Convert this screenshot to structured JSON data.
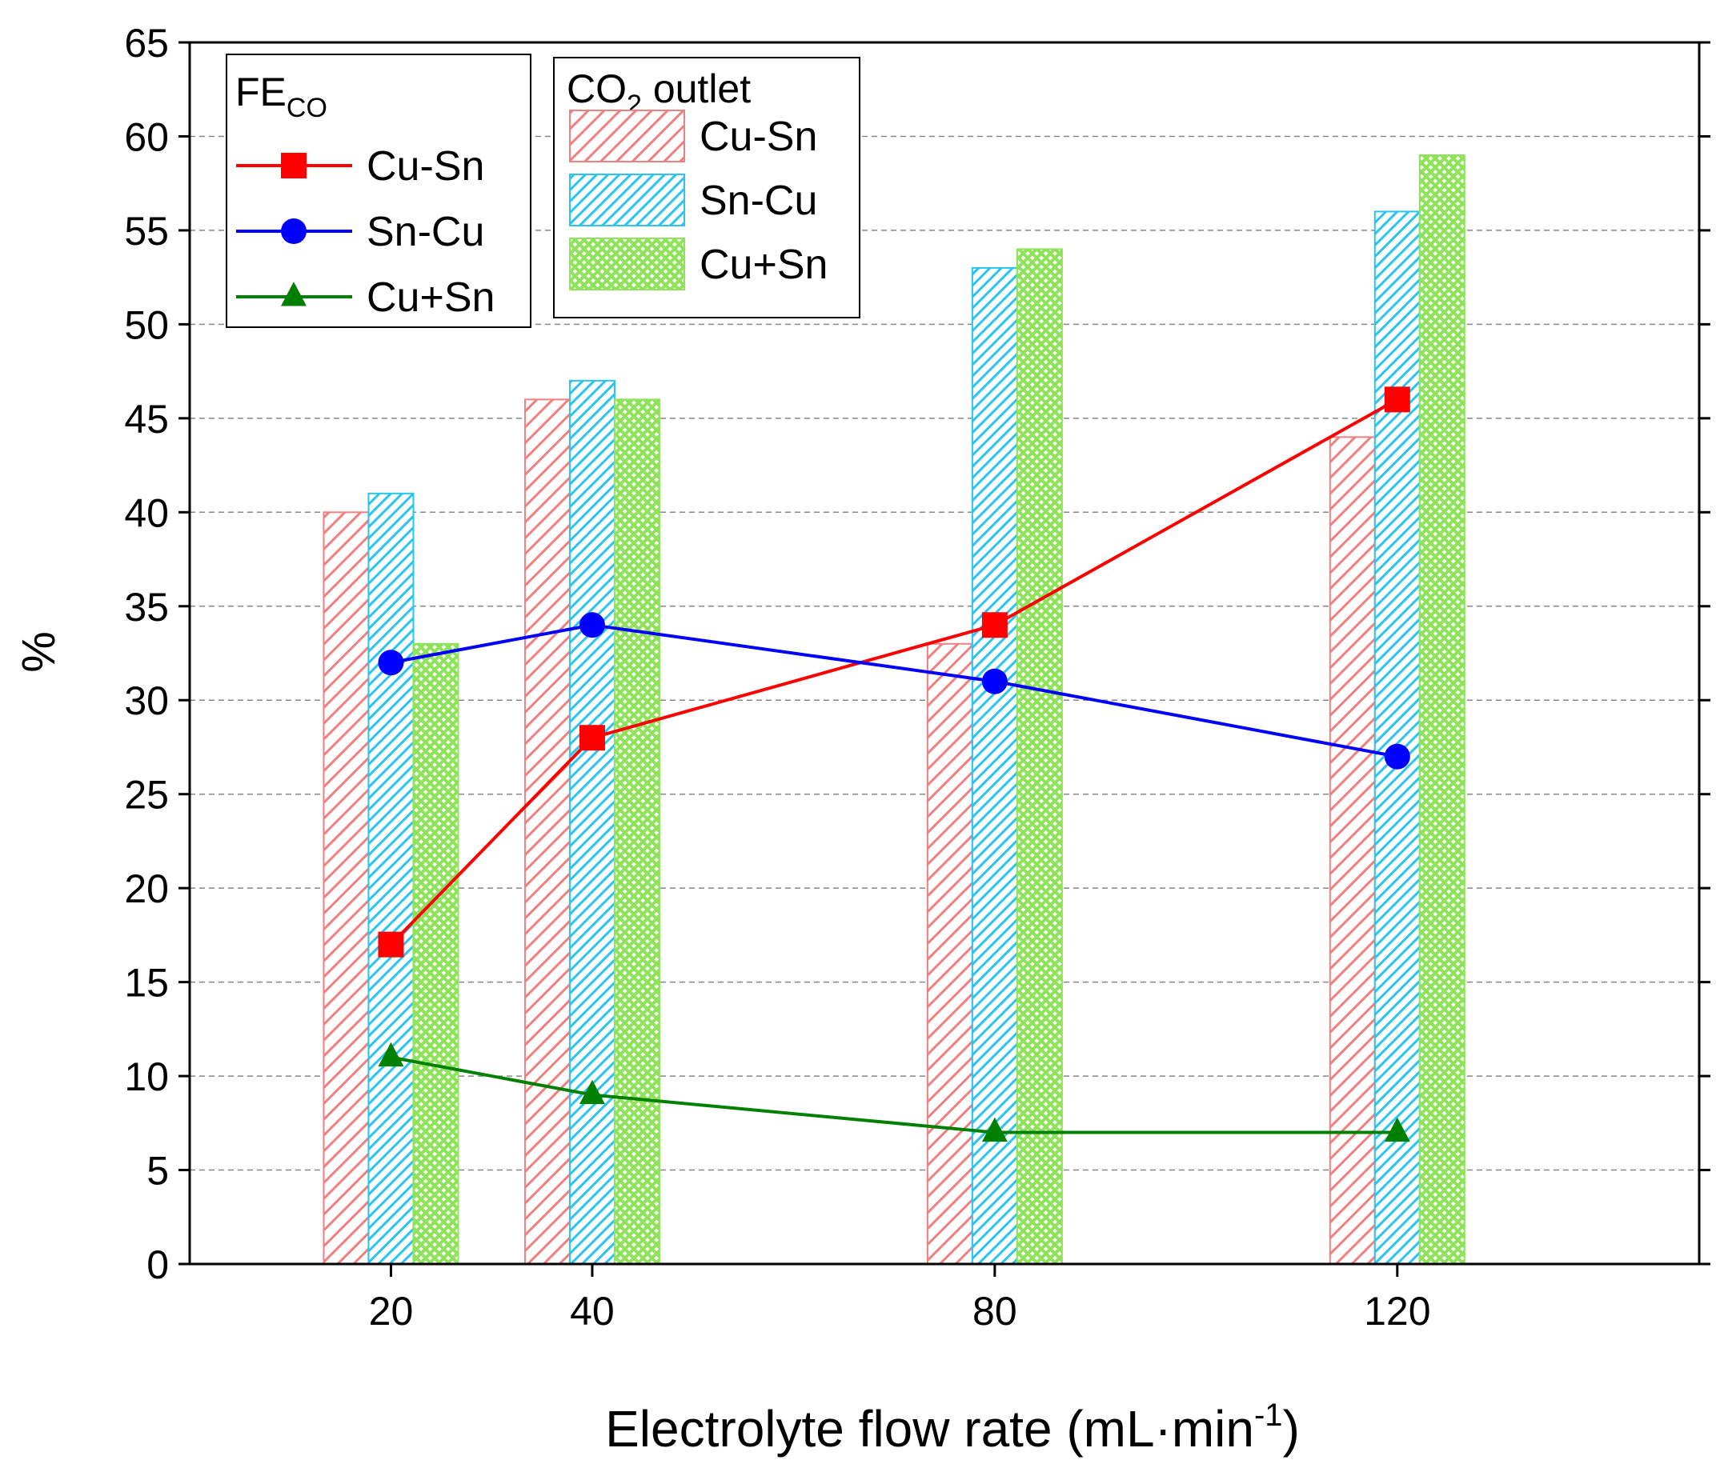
{
  "chart_data": {
    "type": "bar+line",
    "xlabel": "Electrolyte flow rate (mL·min",
    "xlabel_sup": "-1",
    "xlabel_end": ")",
    "ylabel": "%",
    "ylim": [
      0,
      65
    ],
    "yticks": [
      0,
      5,
      10,
      15,
      20,
      25,
      30,
      35,
      40,
      45,
      50,
      55,
      60,
      65
    ],
    "xlim": [
      0,
      150
    ],
    "x": [
      20,
      40,
      80,
      120
    ],
    "x_tick_labels": [
      "20",
      "40",
      "80",
      "120"
    ],
    "grid": "horizontal dashed",
    "bar_group": {
      "title": "CO",
      "title_sub": "2",
      "title_end": " outlet",
      "legend_position": "top-center",
      "series": [
        {
          "name": "Cu-Sn",
          "values": [
            40,
            46,
            33,
            44
          ],
          "color": "#f08080",
          "pattern": "diagonal"
        },
        {
          "name": "Sn-Cu",
          "values": [
            41,
            47,
            53,
            56
          ],
          "color": "#29c4f0",
          "pattern": "dense-diagonal"
        },
        {
          "name": "Cu+Sn",
          "values": [
            33,
            46,
            54,
            59
          ],
          "color": "#8fe35a",
          "pattern": "crosshatch"
        }
      ]
    },
    "line_group": {
      "title": "FE",
      "title_sub": "CO",
      "legend_position": "top-left",
      "series": [
        {
          "name": "Cu-Sn",
          "values": [
            17,
            28,
            34,
            46
          ],
          "color": "#ff0000",
          "marker": "square"
        },
        {
          "name": "Sn-Cu",
          "values": [
            32,
            34,
            31,
            27
          ],
          "color": "#0000ff",
          "marker": "circle"
        },
        {
          "name": "Cu+Sn",
          "values": [
            11,
            9,
            7,
            7
          ],
          "color": "#008000",
          "marker": "triangle"
        }
      ]
    }
  }
}
